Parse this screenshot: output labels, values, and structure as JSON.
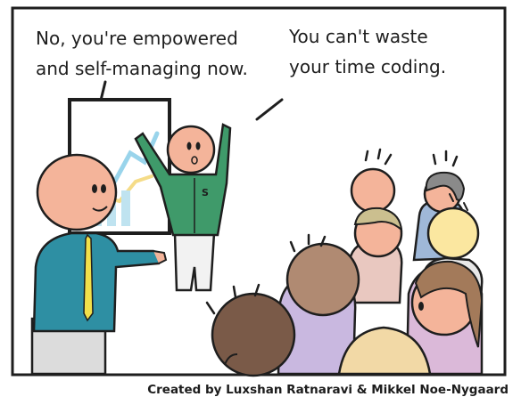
{
  "speech_left": {
    "line1": "No, you're empowered",
    "line2": "and self-managing now."
  },
  "speech_right": {
    "line1": "You can't waste",
    "line2": "your time coding."
  },
  "credit": "Created by Luxshan Ratnaravi & Mikkel Noe-Nygaard",
  "colors": {
    "skin": "#f4b49a",
    "manager_shirt": "#2e8fa3",
    "developer_shirt": "#3f9a6a",
    "tie": "#f2e04a",
    "outline": "#1e1e1e"
  }
}
